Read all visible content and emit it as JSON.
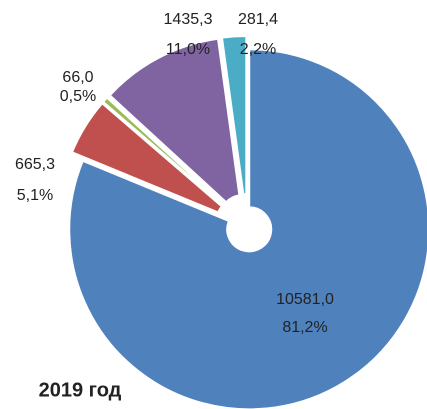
{
  "chart_data": {
    "type": "pie",
    "title": "2019 год",
    "values": [
      10581.0,
      665.3,
      66.0,
      1435.3,
      281.4
    ],
    "value_labels": [
      "10581,0",
      "665,3",
      "66,0",
      "1435,3",
      "281,4"
    ],
    "percentages": [
      81.2,
      5.1,
      0.5,
      11.0,
      2.2
    ],
    "percentage_labels": [
      "81,2%",
      "5,1%",
      "0,5%",
      "11,0%",
      "2,2%"
    ],
    "colors": [
      "#4f81bd",
      "#c0504d",
      "#9bbb59",
      "#8064a2",
      "#4bacc6"
    ]
  }
}
